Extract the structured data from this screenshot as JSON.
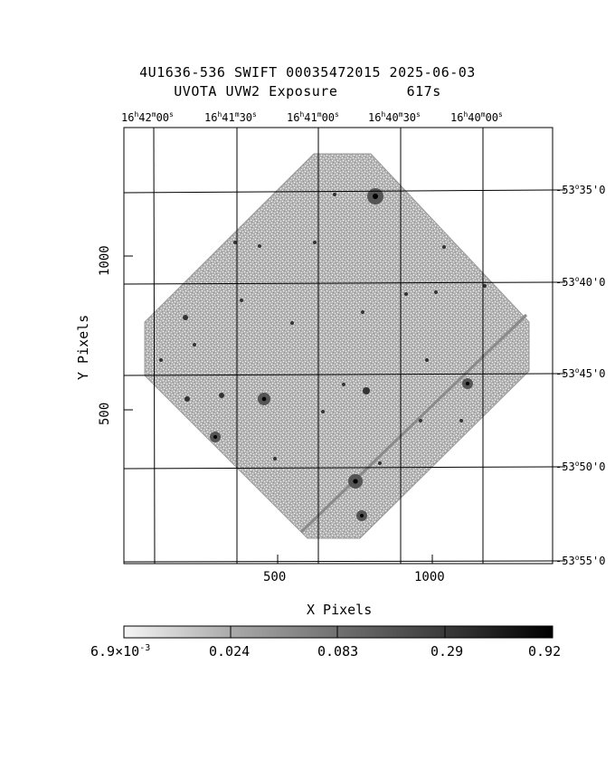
{
  "title_line1": "4U1636-536 SWIFT 00035472015 2025-06-03",
  "title_line2": "UVOTA UVW2 Exposure        617s",
  "ra_labels": [
    {
      "h": "16",
      "m": "42",
      "s": "00"
    },
    {
      "h": "16",
      "m": "41",
      "s": "30"
    },
    {
      "h": "16",
      "m": "41",
      "s": "00"
    },
    {
      "h": "16",
      "m": "40",
      "s": "30"
    },
    {
      "h": "16",
      "m": "40",
      "s": "00"
    }
  ],
  "dec_labels": [
    {
      "d": "-53",
      "m": "35",
      "s": "0"
    },
    {
      "d": "-53",
      "m": "40",
      "s": "0"
    },
    {
      "d": "-53",
      "m": "45",
      "s": "0"
    },
    {
      "d": "-53",
      "m": "50",
      "s": "0"
    },
    {
      "d": "-53",
      "m": "55",
      "s": "0"
    }
  ],
  "x_ticks": [
    "500",
    "1000"
  ],
  "y_ticks": [
    "500",
    "1000"
  ],
  "xlabel": "X Pixels",
  "ylabel": "Y Pixels",
  "colorbar": {
    "first_mantissa": "6.9",
    "first_exponent": "-3",
    "labels": [
      "0.024",
      "0.083",
      "0.29",
      "0.92"
    ]
  },
  "colors": {
    "background": "#ffffff",
    "image_grey": "#a8a8a8",
    "ink": "#000000"
  }
}
